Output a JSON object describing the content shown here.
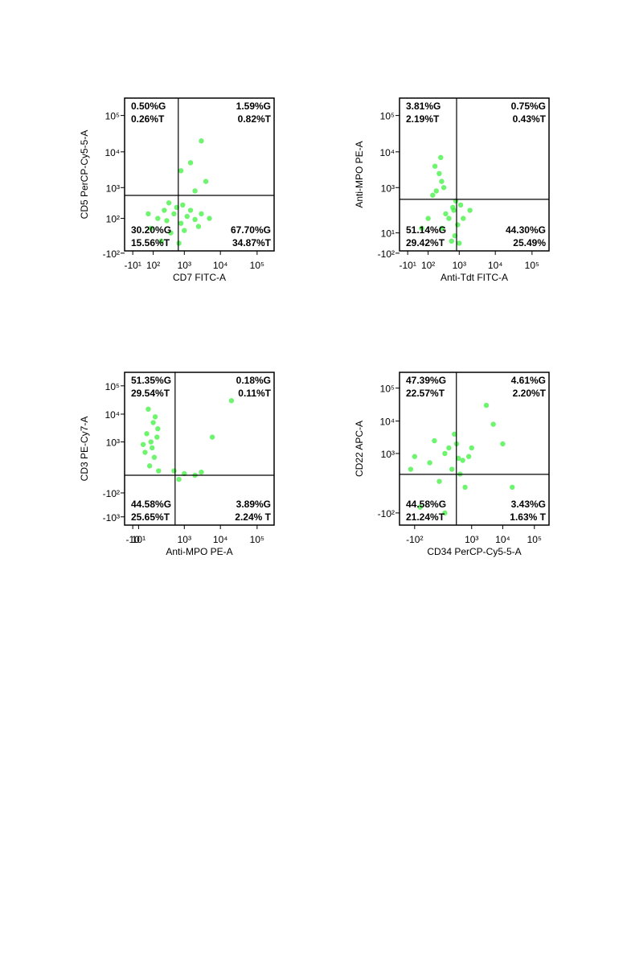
{
  "chart_data": [
    {
      "type": "scatter",
      "xlabel": "CD7 FITC-A",
      "ylabel": "CD5 PerCP-Cy5-5-A",
      "xscale": "biexponential",
      "yscale": "biexponential",
      "xlim": [
        -50,
        290000
      ],
      "ylim": [
        -80,
        300000
      ],
      "xticks": [
        {
          "value": -10,
          "label": "-10¹"
        },
        {
          "value": 100,
          "label": "10²"
        },
        {
          "value": 1000,
          "label": "10³"
        },
        {
          "value": 10000,
          "label": "10⁴"
        },
        {
          "value": 100000,
          "label": "10⁵"
        }
      ],
      "yticks": [
        {
          "value": 100000,
          "label": "10⁵"
        },
        {
          "value": 10000,
          "label": "10⁴"
        },
        {
          "value": 1000,
          "label": "10³"
        },
        {
          "value": 100,
          "label": "10²"
        },
        {
          "value": -100,
          "label": "-10²"
        }
      ],
      "gate": {
        "x": 670,
        "y": 590
      },
      "annotations": [
        "0.50%G",
        "0.26%T",
        "1.59%G",
        "0.82%T",
        "30.20%G",
        "15.56%T",
        "67.70%G",
        "34.87%T"
      ],
      "series": [
        {
          "color": "#3ef03e",
          "x": [
            150,
            300,
            500,
            800,
            1200,
            2000,
            3000,
            5000,
            80,
            250,
            600,
            1000,
            1500,
            400,
            200,
            700,
            2500,
            60,
            350,
            900,
            3000,
            1500,
            800,
            4000,
            2000
          ],
          "y": [
            100,
            80,
            150,
            60,
            120,
            90,
            150,
            100,
            30,
            200,
            250,
            20,
            200,
            10,
            -20,
            -30,
            40,
            150,
            350,
            300,
            20000,
            5000,
            3000,
            1500,
            800
          ]
        }
      ]
    },
    {
      "type": "scatter",
      "xlabel": "Anti-Tdt FITC-A",
      "ylabel": "Anti-MPO PE-A",
      "xscale": "biexponential",
      "yscale": "biexponential",
      "xlim": [
        -50,
        290000
      ],
      "ylim": [
        -80,
        300000
      ],
      "xticks": [
        {
          "value": -10,
          "label": "-10¹"
        },
        {
          "value": 100,
          "label": "10²"
        },
        {
          "value": 1000,
          "label": "10³"
        },
        {
          "value": 10000,
          "label": "10⁴"
        },
        {
          "value": 100000,
          "label": "10⁵"
        }
      ],
      "yticks": [
        {
          "value": 100000,
          "label": "10⁵"
        },
        {
          "value": 10000,
          "label": "10⁴"
        },
        {
          "value": 1000,
          "label": "10³"
        },
        {
          "value": 10,
          "label": "10¹"
        },
        {
          "value": -100,
          "label": "-10²"
        }
      ],
      "gate": {
        "x": 840,
        "y": 450
      },
      "annotations": [
        "3.81%G",
        "2.19%T",
        "0.75%G",
        "0.43%T",
        "51.14%G",
        "29.42%T",
        "44.30%G",
        "25.49%"
      ],
      "series": [
        {
          "color": "#3ef03e",
          "x": [
            500,
            700,
            900,
            1100,
            600,
            400,
            800,
            1300,
            300,
            1000,
            650,
            750,
            200,
            300,
            150,
            250,
            350,
            180,
            280,
            50,
            100,
            2000
          ],
          "y": [
            100,
            200,
            50,
            300,
            -20,
            150,
            400,
            100,
            30,
            -30,
            250,
            0,
            800,
            1500,
            600,
            2500,
            1000,
            4000,
            7000,
            30,
            100,
            200
          ]
        }
      ]
    },
    {
      "type": "scatter",
      "xlabel": "Anti-MPO PE-A",
      "ylabel": "CD3 PE-Cy7-A",
      "xscale": "biexponential",
      "yscale": "biexponential",
      "xlim": [
        -50,
        290000
      ],
      "ylim": [
        -2000,
        300000
      ],
      "xticks": [
        {
          "value": -10,
          "label": "-10"
        },
        {
          "value": 10,
          "label": "10¹"
        },
        {
          "value": 1000,
          "label": "10³"
        },
        {
          "value": 10000,
          "label": "10⁴"
        },
        {
          "value": 100000,
          "label": "10⁵"
        }
      ],
      "yticks": [
        {
          "value": 100000,
          "label": "10⁵"
        },
        {
          "value": 10000,
          "label": "10⁴"
        },
        {
          "value": 1000,
          "label": "10³"
        },
        {
          "value": -100,
          "label": "-10²"
        },
        {
          "value": -1000,
          "label": "-10³"
        }
      ],
      "gate": {
        "x": 540,
        "y": 20
      },
      "annotations": [
        "51.35%G",
        "29.54%T",
        "0.18%G",
        "0.11%T",
        "44.58%G",
        "25.65%T",
        "3.89%G",
        "2.24% T"
      ],
      "series": [
        {
          "color": "#3ef03e",
          "x": [
            50,
            100,
            80,
            150,
            30,
            120,
            60,
            90,
            140,
            40,
            110,
            70,
            160,
            500,
            1000,
            2000,
            3000,
            700,
            20000,
            6000
          ],
          "y": [
            2000,
            5000,
            1000,
            3000,
            800,
            8000,
            15000,
            600,
            1500,
            400,
            250,
            100,
            50,
            50,
            30,
            20,
            40,
            0,
            30000,
            1500
          ]
        }
      ]
    },
    {
      "type": "scatter",
      "xlabel": "CD34 PerCP-Cy5-5-A",
      "ylabel": "CD22 APC-A",
      "xscale": "biexponential",
      "yscale": "biexponential",
      "xlim": [
        -400,
        290000
      ],
      "ylim": [
        -300,
        300000
      ],
      "xticks": [
        {
          "value": -100,
          "label": "-10²"
        },
        {
          "value": 1000,
          "label": "10³"
        },
        {
          "value": 10000,
          "label": "10⁴"
        },
        {
          "value": 100000,
          "label": "10⁵"
        }
      ],
      "yticks": [
        {
          "value": 100000,
          "label": "10⁵"
        },
        {
          "value": 10000,
          "label": "10⁴"
        },
        {
          "value": 1000,
          "label": "10³"
        },
        {
          "value": -100,
          "label": "-10²"
        }
      ],
      "gate": {
        "x": 296,
        "y": 195
      },
      "annotations": [
        "47.39%G",
        "22.57%T",
        "4.61%G",
        "2.20%T",
        "44.58%G",
        "21.24%T",
        "3.43%G",
        "1.63% T"
      ],
      "series": [
        {
          "color": "#3ef03e",
          "x": [
            0,
            100,
            200,
            -100,
            300,
            500,
            50,
            -50,
            150,
            400,
            800,
            250,
            -150,
            600,
            1000,
            100,
            350,
            20,
            5000,
            20000,
            10000,
            3000
          ],
          "y": [
            500,
            1000,
            300,
            800,
            2000,
            600,
            100,
            -50,
            1500,
            200,
            800,
            4000,
            300,
            50,
            1500,
            -100,
            700,
            2500,
            8000,
            50,
            2000,
            30000
          ]
        }
      ]
    }
  ]
}
